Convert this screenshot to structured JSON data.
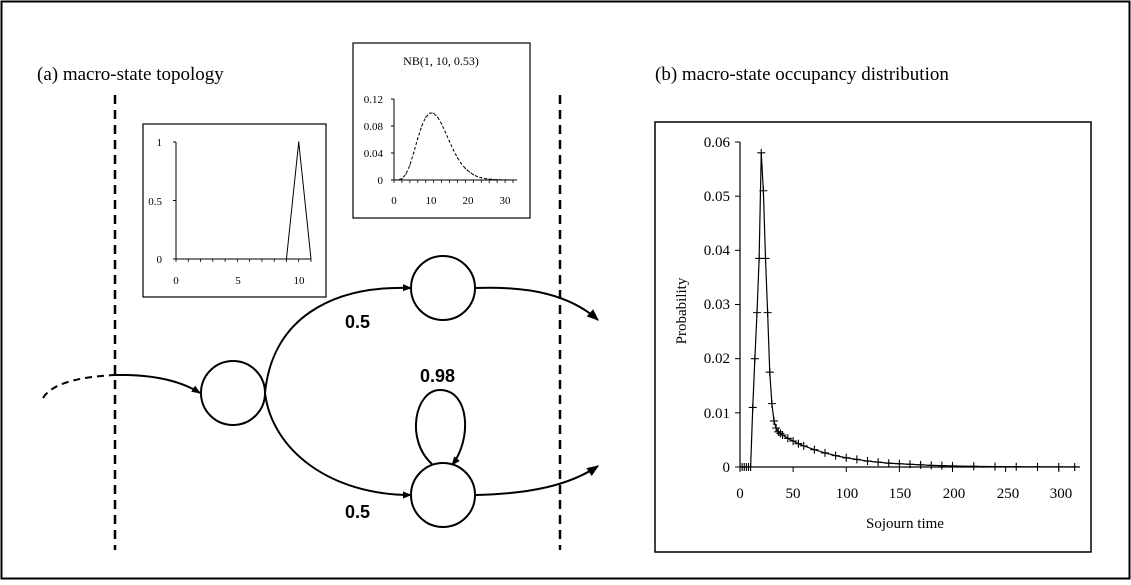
{
  "panel_a": {
    "title": "(a) macro-state topology",
    "inset_left": {
      "title": "",
      "y_ticks": [
        "0",
        "0.5",
        "1"
      ],
      "x_ticks": [
        "0",
        "5",
        "10"
      ],
      "chart_data": {
        "type": "line",
        "x": [
          0,
          1,
          2,
          3,
          4,
          5,
          6,
          7,
          8,
          9,
          10,
          11
        ],
        "values": [
          0,
          0,
          0,
          0,
          0,
          0,
          0,
          0,
          0,
          0,
          1,
          0
        ],
        "xlim": [
          0,
          11
        ],
        "ylim": [
          0,
          1
        ]
      }
    },
    "inset_right": {
      "title": "NB(1, 10, 0.53)",
      "y_ticks": [
        "0",
        "0.04",
        "0.08",
        "0.12"
      ],
      "x_ticks": [
        "0",
        "10",
        "20",
        "30"
      ],
      "chart_data": {
        "type": "line",
        "x": [
          0,
          1,
          2,
          3,
          4,
          5,
          6,
          7,
          8,
          9,
          10,
          11,
          12,
          13,
          14,
          15,
          16,
          17,
          18,
          19,
          20,
          21,
          22,
          23,
          24,
          25,
          26,
          27,
          28,
          29,
          30
        ],
        "values": [
          0,
          0.0002,
          0.002,
          0.0085,
          0.022,
          0.041,
          0.062,
          0.08,
          0.093,
          0.099,
          0.099,
          0.093,
          0.083,
          0.07,
          0.057,
          0.044,
          0.033,
          0.024,
          0.017,
          0.012,
          0.008,
          0.005,
          0.0033,
          0.0021,
          0.0013,
          0.0008,
          0.0005,
          0.0003,
          0.0002,
          0.0001,
          5e-05
        ],
        "xlim": [
          0,
          31
        ],
        "ylim": [
          0,
          0.12
        ]
      }
    },
    "edges": {
      "upper_prob": "0.5",
      "lower_prob": "0.5",
      "self_loop_prob": "0.98"
    }
  },
  "panel_b": {
    "title": "(b) macro-state occupancy distribution",
    "chart_data": {
      "type": "line",
      "xlabel": "Sojourn time",
      "ylabel": "Probability",
      "xlim": [
        0,
        320
      ],
      "ylim": [
        0,
        0.06
      ],
      "x_ticks": [
        "0",
        "50",
        "100",
        "150",
        "200",
        "250",
        "300"
      ],
      "y_ticks": [
        "0",
        "0.01",
        "0.02",
        "0.03",
        "0.04",
        "0.05",
        "0.06"
      ],
      "x": [
        0,
        2,
        4,
        6,
        8,
        10,
        12,
        14,
        16,
        18,
        20,
        22,
        24,
        26,
        28,
        30,
        32,
        34,
        36,
        38,
        40,
        45,
        50,
        55,
        60,
        70,
        80,
        90,
        100,
        110,
        120,
        130,
        140,
        150,
        160,
        170,
        180,
        190,
        200,
        220,
        240,
        260,
        280,
        300,
        315
      ],
      "values": [
        0,
        0,
        0,
        0,
        0,
        0,
        0.011,
        0.02,
        0.0285,
        0.0385,
        0.058,
        0.051,
        0.0385,
        0.0285,
        0.0175,
        0.0117,
        0.0085,
        0.0072,
        0.0065,
        0.0062,
        0.0059,
        0.0053,
        0.0048,
        0.0043,
        0.0039,
        0.0032,
        0.0026,
        0.0021,
        0.0017,
        0.0014,
        0.0011,
        0.0009,
        0.0007,
        0.0006,
        0.0005,
        0.0004,
        0.0003,
        0.00025,
        0.0002,
        0.00013,
        8e-05,
        5e-05,
        3e-05,
        2e-05,
        1e-05
      ]
    }
  }
}
